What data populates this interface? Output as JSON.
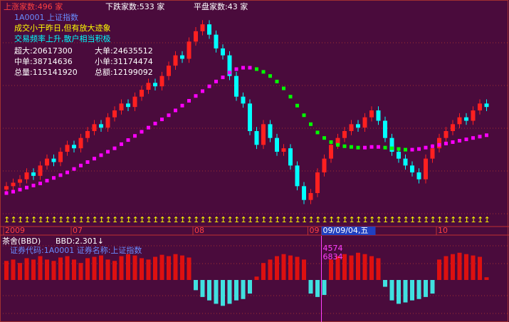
{
  "header": {
    "up": "上涨家数:496 家",
    "down": "下跌家数:533 家",
    "flat": "平盘家数:43 家",
    "code": "1A0001 上证指数",
    "note1": "成交小于昨日,但有放大迹象",
    "note2": "交易频率上升,散户相当积极",
    "stats": [
      "超大:20617300",
      "大单:24635512",
      "中单:38714636",
      "小单:31174474",
      "总量:115141920",
      "总额:12199092"
    ]
  },
  "chart_data": [
    {
      "type": "candlestick",
      "open": [
        35,
        40,
        45,
        50,
        60,
        55,
        70,
        80,
        75,
        90,
        100,
        95,
        110,
        120,
        130,
        125,
        140,
        150,
        160,
        155,
        170,
        180,
        190,
        185,
        200,
        215,
        230,
        225,
        250,
        265,
        275,
        260,
        240,
        230,
        200,
        170,
        160,
        120,
        100,
        130,
        110,
        90,
        95,
        70,
        40,
        20,
        30,
        60,
        80,
        100,
        110,
        120,
        130,
        125,
        140,
        150,
        135,
        110,
        90,
        80,
        70,
        60,
        50,
        80,
        95,
        110,
        120,
        130,
        140,
        135,
        150,
        160
      ],
      "high": [
        46,
        51,
        56,
        66,
        66,
        76,
        86,
        86,
        96,
        106,
        106,
        116,
        126,
        136,
        136,
        146,
        156,
        166,
        166,
        176,
        186,
        196,
        196,
        206,
        221,
        236,
        236,
        256,
        271,
        281,
        281,
        266,
        246,
        236,
        206,
        176,
        166,
        126,
        136,
        136,
        116,
        101,
        101,
        76,
        46,
        36,
        66,
        86,
        106,
        116,
        126,
        136,
        136,
        146,
        156,
        156,
        141,
        116,
        96,
        86,
        76,
        66,
        86,
        101,
        116,
        126,
        136,
        146,
        146,
        156,
        166,
        166
      ],
      "low": [
        29,
        34,
        39,
        44,
        49,
        49,
        64,
        69,
        69,
        84,
        89,
        89,
        104,
        114,
        119,
        119,
        134,
        144,
        149,
        149,
        164,
        174,
        179,
        179,
        194,
        209,
        219,
        219,
        244,
        259,
        254,
        234,
        224,
        194,
        164,
        154,
        114,
        94,
        94,
        104,
        84,
        84,
        64,
        34,
        14,
        14,
        24,
        54,
        74,
        94,
        104,
        114,
        119,
        119,
        134,
        129,
        104,
        84,
        74,
        64,
        54,
        44,
        44,
        74,
        89,
        104,
        114,
        124,
        129,
        129,
        144,
        149
      ],
      "close": [
        40,
        45,
        50,
        60,
        55,
        70,
        80,
        75,
        90,
        100,
        95,
        110,
        120,
        130,
        125,
        140,
        150,
        160,
        155,
        170,
        180,
        190,
        185,
        200,
        215,
        230,
        225,
        250,
        265,
        275,
        260,
        240,
        230,
        200,
        170,
        160,
        120,
        100,
        130,
        110,
        90,
        95,
        70,
        40,
        20,
        30,
        60,
        80,
        100,
        110,
        120,
        130,
        125,
        140,
        150,
        135,
        110,
        90,
        80,
        70,
        60,
        50,
        80,
        95,
        110,
        120,
        130,
        140,
        135,
        150,
        160,
        155
      ],
      "ylim": [
        0,
        300
      ],
      "rise_color": "#ff2020",
      "fall_color": "#00ffff",
      "ma": {
        "values": [
          30,
          32,
          35,
          38,
          41,
          44,
          48,
          52,
          56,
          60,
          65,
          70,
          75,
          80,
          85,
          90,
          95,
          101,
          107,
          113,
          119,
          125,
          131,
          137,
          143,
          150,
          157,
          164,
          171,
          178,
          185,
          192,
          198,
          205,
          210,
          212,
          212,
          210,
          206,
          200,
          192,
          182,
          170,
          157,
          143,
          130,
          118,
          110,
          104,
          100,
          98,
          97,
          96,
          96,
          97,
          97,
          96,
          95,
          94,
          93,
          93,
          94,
          96,
          98,
          100,
          102,
          104,
          106,
          108,
          110,
          112,
          114
        ],
        "rise_color": "#ff00ff",
        "fall_color": "#00ff00"
      },
      "x_labels": [
        {
          "index": 0,
          "label": "2009"
        },
        {
          "index": 10,
          "label": "07"
        },
        {
          "index": 28,
          "label": "08"
        },
        {
          "index": 45,
          "label": "09"
        },
        {
          "index": 47,
          "label": "09/09/04,五",
          "highlight": true
        },
        {
          "index": 64,
          "label": "10"
        }
      ]
    },
    {
      "type": "bar",
      "title": "茶舍(BBD)",
      "indicator": "BBD:2.301↓",
      "subtitle": "证券代码:1A0001 证券名称:上证指数",
      "values": [
        28,
        30,
        25,
        32,
        30,
        35,
        30,
        28,
        33,
        35,
        30,
        25,
        32,
        34,
        36,
        30,
        28,
        35,
        38,
        36,
        32,
        30,
        34,
        37,
        35,
        38,
        36,
        33,
        -15,
        -25,
        -30,
        -35,
        -38,
        -35,
        -30,
        -28,
        -20,
        5,
        25,
        30,
        35,
        38,
        36,
        34,
        30,
        -20,
        -25,
        -22,
        30,
        35,
        38,
        36,
        40,
        38,
        35,
        32,
        -10,
        -30,
        -35,
        -33,
        -30,
        -28,
        -25,
        -20,
        30,
        35,
        38,
        40,
        38,
        36,
        34,
        4
      ],
      "ylim": [
        -45,
        45
      ],
      "pos_color": "#dd1010",
      "neg_color": "#40e0e0",
      "cursor_labels": [
        "4574",
        "6834"
      ]
    }
  ]
}
